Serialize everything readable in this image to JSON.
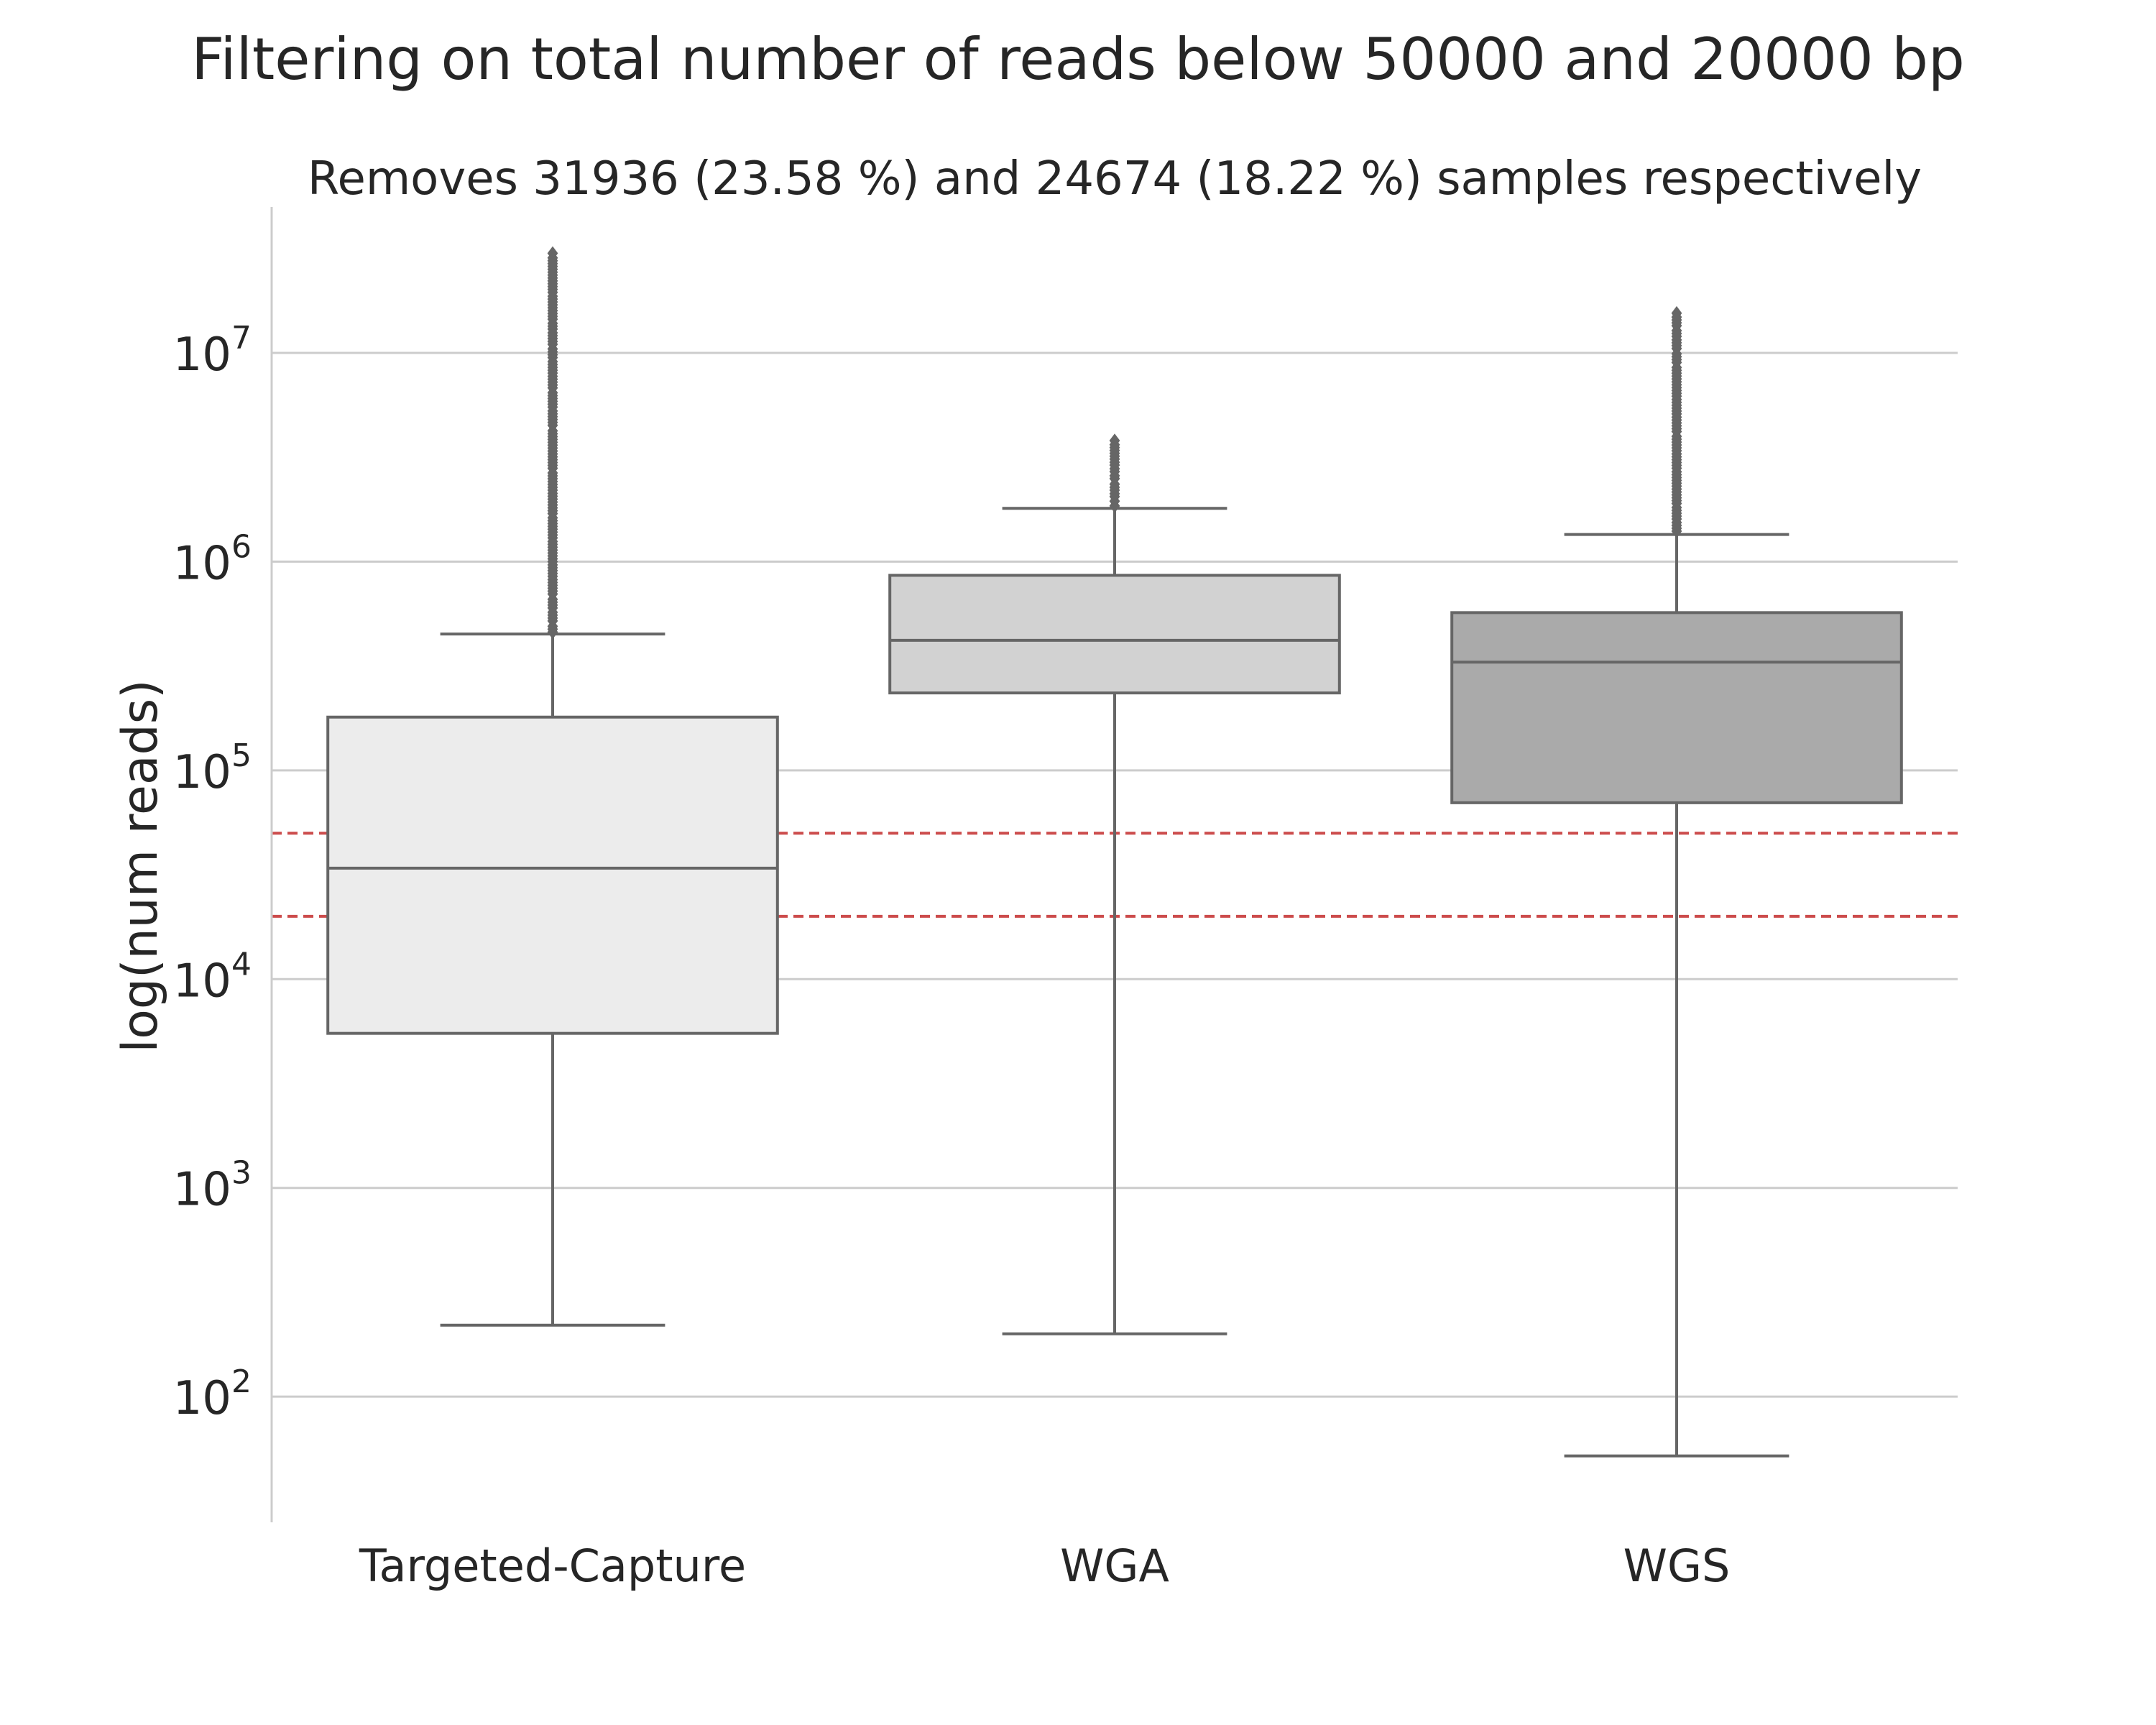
{
  "figure_title": "Filtering on total number of reads below 50000 and 20000 bp",
  "chart_data": {
    "type": "box",
    "title": "Removes 31936 (23.58 %) and 24674 (18.22 %) samples respectively",
    "xlabel": "",
    "ylabel": "log(num reads)",
    "yscale": "log",
    "ylim": [
      25,
      50000000
    ],
    "y_tick_labels": [
      {
        "value": 100,
        "base": "10",
        "exp": "2"
      },
      {
        "value": 1000,
        "base": "10",
        "exp": "3"
      },
      {
        "value": 10000,
        "base": "10",
        "exp": "4"
      },
      {
        "value": 100000,
        "base": "10",
        "exp": "5"
      },
      {
        "value": 1000000,
        "base": "10",
        "exp": "6"
      },
      {
        "value": 10000000,
        "base": "10",
        "exp": "7"
      }
    ],
    "grid": "y",
    "categories": [
      "Targeted-Capture",
      "WGA",
      "WGS"
    ],
    "boxes": [
      {
        "name": "Targeted-Capture",
        "whisker_low": 220,
        "q1": 5500,
        "median": 34000,
        "q3": 180000,
        "whisker_high": 450000,
        "outliers": [
          460000,
          520000,
          600000,
          700000,
          850000,
          1000000,
          1300000,
          1700000,
          2200000,
          2800000,
          3500000,
          4500000,
          5500000,
          6800000,
          8000000,
          9500000,
          11000000,
          13000000,
          14500000,
          19500000,
          30000000
        ],
        "color": "#ececec"
      },
      {
        "name": "WGA",
        "whisker_low": 200,
        "q1": 235000,
        "median": 420000,
        "q3": 860000,
        "whisker_high": 1800000,
        "outliers": [
          1850000,
          1950000,
          2050000,
          2200000,
          2350000,
          2500000,
          2700000,
          2900000,
          3100000,
          3800000
        ],
        "color": "#d2d2d2"
      },
      {
        "name": "WGS",
        "whisker_low": 52,
        "q1": 70000,
        "median": 330000,
        "q3": 570000,
        "whisker_high": 1350000,
        "outliers": [
          1400000,
          1600000,
          1900000,
          2300000,
          2800000,
          3400000,
          4200000,
          5100000,
          6200000,
          7500000,
          9000000,
          10500000,
          12000000,
          13500000,
          15500000
        ],
        "color": "#aaaaaa"
      }
    ],
    "threshold_lines": [
      {
        "value": 50000,
        "color": "#cc4c4c",
        "style": "dashed"
      },
      {
        "value": 20000,
        "color": "#cc4c4c",
        "style": "dashed"
      }
    ],
    "colors": {
      "box_edge": "#666666",
      "grid": "#cccccc",
      "spine": "#cccccc",
      "text": "#262626"
    }
  }
}
